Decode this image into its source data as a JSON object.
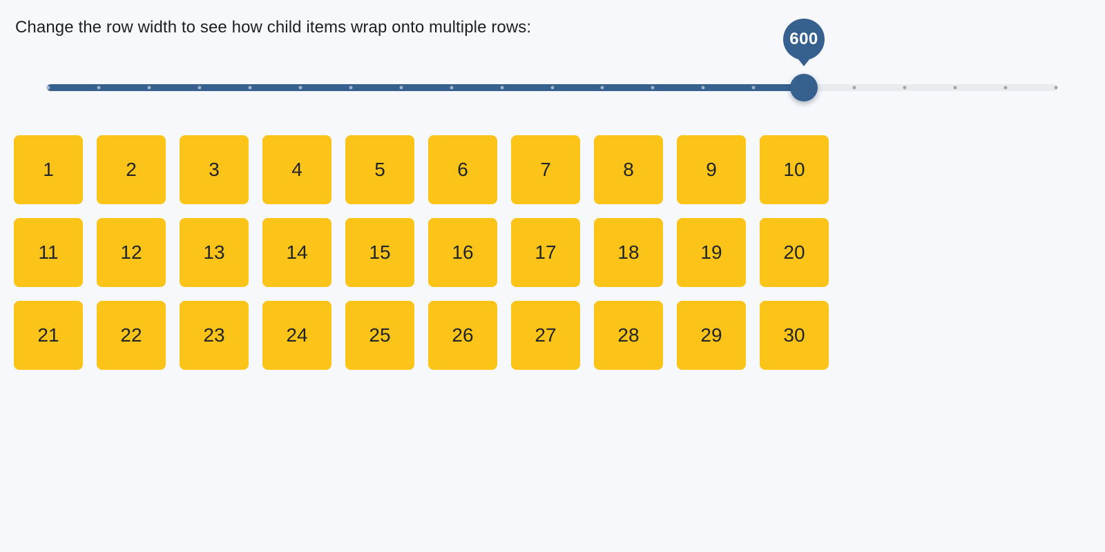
{
  "page": {
    "background": "#f7f8fc",
    "heading": "Change the row width to see how child items wrap onto multiple rows:"
  },
  "slider": {
    "value_label": "600",
    "tick_count": 21,
    "colors": {
      "fill": "#36618e",
      "rail": "#e9ecef",
      "thumb": "#36618e",
      "tooltip_bg": "#36618e",
      "tooltip_text": "#ffffff",
      "tick_on_fill": "#9fb3ca",
      "tick_on_rail": "#a0a5ab"
    }
  },
  "tiles": {
    "background": "#fcc419",
    "text_color": "#212529",
    "items": [
      "1",
      "2",
      "3",
      "4",
      "5",
      "6",
      "7",
      "8",
      "9",
      "10",
      "11",
      "12",
      "13",
      "14",
      "15",
      "16",
      "17",
      "18",
      "19",
      "20",
      "21",
      "22",
      "23",
      "24",
      "25",
      "26",
      "27",
      "28",
      "29",
      "30"
    ]
  }
}
